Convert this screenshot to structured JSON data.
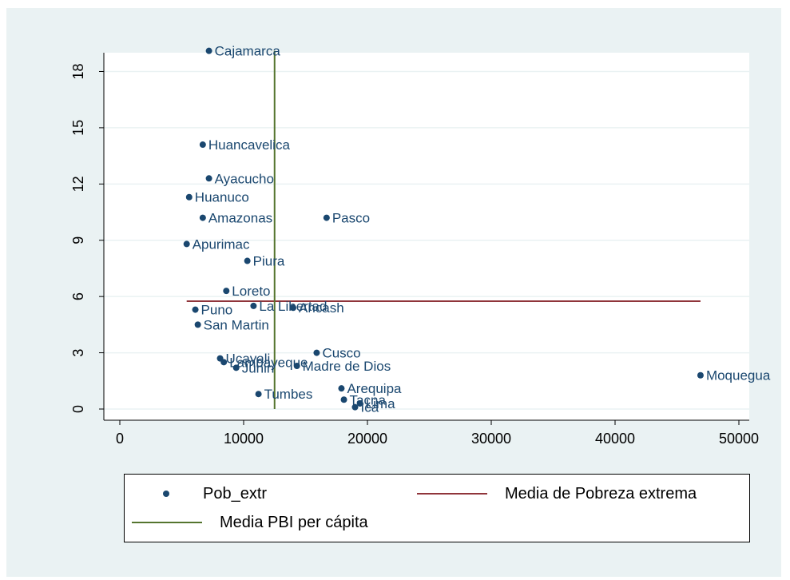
{
  "chart_data": {
    "type": "scatter",
    "title": "",
    "xlabel": "",
    "ylabel": "",
    "xlim": [
      0,
      50000
    ],
    "ylim": [
      0,
      19
    ],
    "x_ticks": [
      0,
      10000,
      20000,
      30000,
      40000,
      50000
    ],
    "y_ticks": [
      0,
      3,
      6,
      9,
      12,
      15,
      18
    ],
    "grid": "horizontal",
    "legend_position": "bottom",
    "points": [
      {
        "label": "Cajamarca",
        "x": 7200,
        "y": 19.1
      },
      {
        "label": "Huancavelica",
        "x": 6700,
        "y": 14.1
      },
      {
        "label": "Ayacucho",
        "x": 7200,
        "y": 12.3
      },
      {
        "label": "Huanuco",
        "x": 5600,
        "y": 11.3
      },
      {
        "label": "Amazonas",
        "x": 6700,
        "y": 10.2
      },
      {
        "label": "Pasco",
        "x": 16700,
        "y": 10.2
      },
      {
        "label": "Apurimac",
        "x": 5400,
        "y": 8.8
      },
      {
        "label": "Piura",
        "x": 10300,
        "y": 7.9
      },
      {
        "label": "Loreto",
        "x": 8600,
        "y": 6.3
      },
      {
        "label": "La Libertad",
        "x": 10800,
        "y": 5.5
      },
      {
        "label": "Ancash",
        "x": 14000,
        "y": 5.4
      },
      {
        "label": "Puno",
        "x": 6100,
        "y": 5.3
      },
      {
        "label": "San Martin",
        "x": 6300,
        "y": 4.5
      },
      {
        "label": "Cusco",
        "x": 15900,
        "y": 3.0
      },
      {
        "label": "Ucayali",
        "x": 8100,
        "y": 2.7
      },
      {
        "label": "Lambayeque",
        "x": 8400,
        "y": 2.5
      },
      {
        "label": "Junin",
        "x": 9400,
        "y": 2.2
      },
      {
        "label": "Madre de Dios",
        "x": 14300,
        "y": 2.3
      },
      {
        "label": "Moquegua",
        "x": 46900,
        "y": 1.8
      },
      {
        "label": "Arequipa",
        "x": 17900,
        "y": 1.1
      },
      {
        "label": "Tacna",
        "x": 18100,
        "y": 0.5
      },
      {
        "label": "Lima",
        "x": 19400,
        "y": 0.3
      },
      {
        "label": "Ica",
        "x": 19000,
        "y": 0.1
      },
      {
        "label": "Tumbes",
        "x": 11200,
        "y": 0.8
      }
    ],
    "reference_lines": [
      {
        "name": "Media de Pobreza extrema",
        "orientation": "horizontal",
        "value": 5.75,
        "from": 5400,
        "to": 46900,
        "color": "#90353b"
      },
      {
        "name": "Media PBI per cápita",
        "orientation": "vertical",
        "value": 12500,
        "from": 0,
        "to": 19.1,
        "color": "#55752f"
      }
    ],
    "series_color": "#1a476f",
    "legend": [
      {
        "label": "Pob_extr",
        "symbol": "dot",
        "color": "#1a476f"
      },
      {
        "label": "Media de Pobreza extrema",
        "symbol": "line",
        "color": "#90353b"
      },
      {
        "label": "Media PBI per cápita",
        "symbol": "line",
        "color": "#55752f"
      }
    ]
  }
}
